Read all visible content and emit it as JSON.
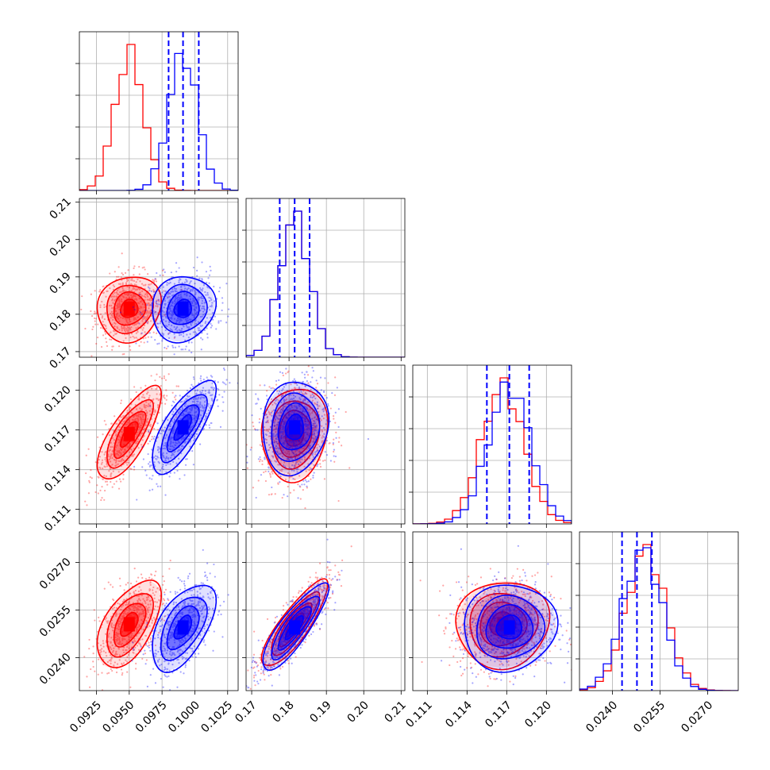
{
  "chart_data": {
    "type": "corner",
    "description": "Corner plot comparing two posterior sample sets",
    "parameters": [
      {
        "ticks": [
          0.0925,
          0.095,
          0.0975,
          0.1,
          0.1025
        ],
        "tick_labels": [
          "0.0925",
          "0.0950",
          "0.0975",
          "0.1000",
          "0.1025"
        ],
        "range": [
          0.0912,
          0.1033
        ]
      },
      {
        "ticks": [
          0.17,
          0.18,
          0.19,
          0.2,
          0.21
        ],
        "tick_labels": [
          "0.17",
          "0.18",
          "0.19",
          "0.20",
          "0.21"
        ],
        "range": [
          0.1685,
          0.211
        ]
      },
      {
        "ticks": [
          0.111,
          0.114,
          0.117,
          0.12
        ],
        "tick_labels": [
          "0.111",
          "0.114",
          "0.117",
          "0.120"
        ],
        "range": [
          0.1099,
          0.1219
        ]
      },
      {
        "ticks": [
          0.024,
          0.0255,
          0.027
        ],
        "tick_labels": [
          "0.0240",
          "0.0255",
          "0.0270"
        ],
        "range": [
          0.02296,
          0.02796
        ]
      }
    ],
    "series": [
      {
        "color": "#ff0000",
        "mean": [
          0.095,
          0.1815,
          0.1167,
          0.02505
        ],
        "std": [
          0.0011,
          0.004,
          0.0016,
          0.00062
        ],
        "corr": [
          [
            1,
            0.1,
            0.75,
            0.55
          ],
          [
            0.1,
            1,
            0.1,
            0.85
          ],
          [
            0.75,
            0.1,
            1,
            0.05
          ],
          [
            0.55,
            0.85,
            0.05,
            1
          ]
        ]
      },
      {
        "color": "#0000ff",
        "mean": [
          0.0991,
          0.1815,
          0.1172,
          0.02495
        ],
        "std": [
          0.0011,
          0.004,
          0.0016,
          0.00062
        ],
        "corr": [
          [
            1,
            0.1,
            0.75,
            0.55
          ],
          [
            0.1,
            1,
            0.1,
            0.85
          ],
          [
            0.75,
            0.1,
            1,
            0.05
          ],
          [
            0.55,
            0.85,
            0.05,
            1
          ]
        ]
      }
    ],
    "quantile_lines": {
      "color": "#0000ff",
      "style": "dashed",
      "values": [
        [
          0.098,
          0.0991,
          0.1003
        ],
        [
          0.1775,
          0.1815,
          0.1855
        ],
        [
          0.1155,
          0.1172,
          0.1187
        ],
        [
          0.0243,
          0.02477,
          0.02524
        ]
      ]
    },
    "grid": true
  }
}
